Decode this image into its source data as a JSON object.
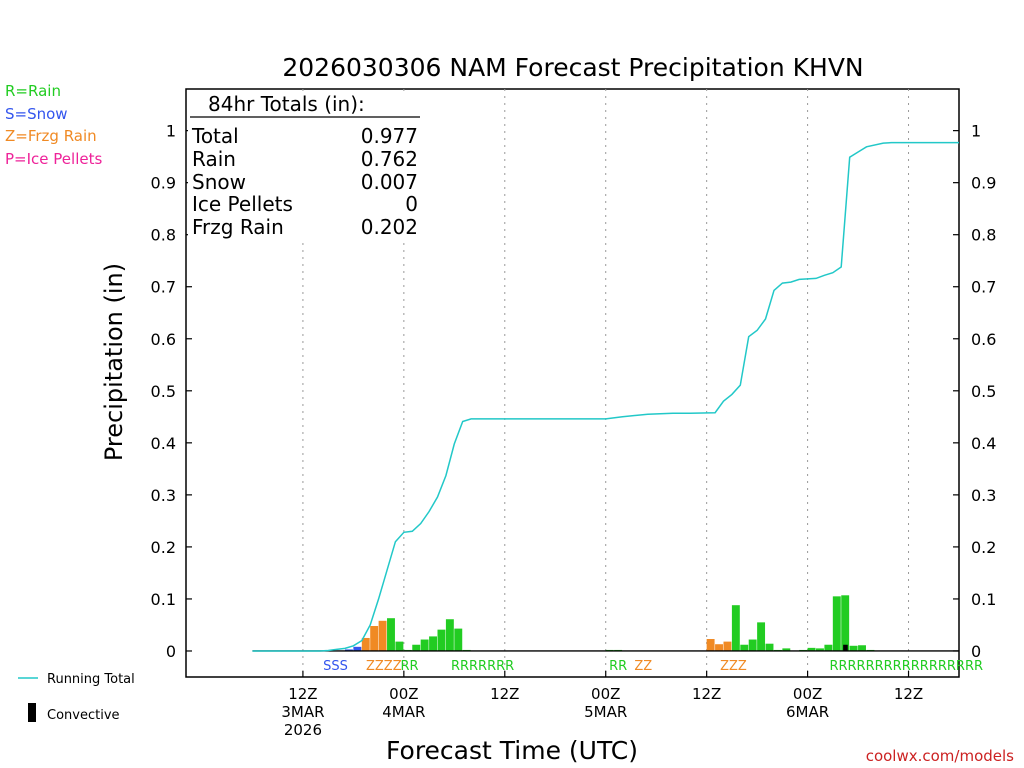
{
  "chart_data": {
    "type": "bar",
    "title": "2026030306 NAM Forecast Precipitation KHVN",
    "xlabel": "Forecast Time (UTC)",
    "ylabel": "Precipitation (in)",
    "ylim": [
      -0.05,
      1.08
    ],
    "xlim_hours": [
      -7.9,
      84
    ],
    "y_ticks": [
      0,
      0.1,
      0.2,
      0.3,
      0.4,
      0.5,
      0.6,
      0.7,
      0.8,
      0.9,
      1
    ],
    "y_tick_labels": [
      "0",
      "0.1",
      "0.2",
      "0.3",
      "0.4",
      "0.5",
      "0.6",
      "0.7",
      "0.8",
      "0.9",
      "1"
    ],
    "x_ticks": [
      {
        "hour": 6,
        "lines": [
          "12Z",
          "3MAR",
          "2026"
        ]
      },
      {
        "hour": 18,
        "lines": [
          "00Z",
          "4MAR"
        ]
      },
      {
        "hour": 30,
        "lines": [
          "12Z"
        ]
      },
      {
        "hour": 42,
        "lines": [
          "00Z",
          "5MAR"
        ]
      },
      {
        "hour": 54,
        "lines": [
          "12Z"
        ]
      },
      {
        "hour": 66,
        "lines": [
          "00Z",
          "6MAR"
        ]
      },
      {
        "hour": 78,
        "lines": [
          "12Z"
        ]
      }
    ],
    "legend": {
      "types": [
        {
          "label": "R=Rain",
          "color": "#22cc22"
        },
        {
          "label": "S=Snow",
          "color": "#3355ee"
        },
        {
          "label": "Z=Frzg Rain",
          "color": "#f08a24"
        },
        {
          "label": "P=Ice Pellets",
          "color": "#ee2299"
        }
      ],
      "running_total_label": "Running Total",
      "convective_label": "Convective"
    },
    "totals_box": {
      "header": "84hr Totals (in):",
      "rows": [
        {
          "label": "Total",
          "value": "0.977"
        },
        {
          "label": "Rain",
          "value": "0.762"
        },
        {
          "label": "Snow",
          "value": "0.007"
        },
        {
          "label": "Ice Pellets",
          "value": "0"
        },
        {
          "label": "Frzg Rain",
          "value": "0.202"
        }
      ]
    },
    "bars": [
      {
        "hour": 12,
        "value": 0.003,
        "type": "S"
      },
      {
        "hour": 13,
        "value": 0.008,
        "type": "S"
      },
      {
        "hour": 14,
        "value": 0.025,
        "type": "Z"
      },
      {
        "hour": 15,
        "value": 0.048,
        "type": "Z"
      },
      {
        "hour": 16,
        "value": 0.058,
        "type": "Z"
      },
      {
        "hour": 17,
        "value": 0.063,
        "type": "R"
      },
      {
        "hour": 18,
        "value": 0.018,
        "type": "R"
      },
      {
        "hour": 19,
        "value": 0.002,
        "type": "R"
      },
      {
        "hour": 20,
        "value": 0.012,
        "type": "R"
      },
      {
        "hour": 21,
        "value": 0.022,
        "type": "R"
      },
      {
        "hour": 22,
        "value": 0.028,
        "type": "R"
      },
      {
        "hour": 23,
        "value": 0.041,
        "type": "R"
      },
      {
        "hour": 24,
        "value": 0.061,
        "type": "R"
      },
      {
        "hour": 25,
        "value": 0.043,
        "type": "R"
      },
      {
        "hour": 26,
        "value": 0.002,
        "type": "R"
      },
      {
        "hour": 43,
        "value": 0.002,
        "type": "R"
      },
      {
        "hour": 44,
        "value": 0.002,
        "type": "R"
      },
      {
        "hour": 55,
        "value": 0.023,
        "type": "Z"
      },
      {
        "hour": 56,
        "value": 0.013,
        "type": "Z"
      },
      {
        "hour": 57,
        "value": 0.018,
        "type": "Z"
      },
      {
        "hour": 58,
        "value": 0.088,
        "type": "R"
      },
      {
        "hour": 59,
        "value": 0.012,
        "type": "R"
      },
      {
        "hour": 60,
        "value": 0.022,
        "type": "R"
      },
      {
        "hour": 61,
        "value": 0.055,
        "type": "R"
      },
      {
        "hour": 62,
        "value": 0.014,
        "type": "R"
      },
      {
        "hour": 63,
        "value": 0.002,
        "type": "R"
      },
      {
        "hour": 64,
        "value": 0.005,
        "type": "R"
      },
      {
        "hour": 66,
        "value": 0.002,
        "type": "R"
      },
      {
        "hour": 67,
        "value": 0.006,
        "type": "R"
      },
      {
        "hour": 68,
        "value": 0.005,
        "type": "R"
      },
      {
        "hour": 69,
        "value": 0.012,
        "type": "R"
      },
      {
        "hour": 70,
        "value": 0.105,
        "type": "R"
      },
      {
        "hour": 71,
        "value": 0.107,
        "type": "R"
      },
      {
        "hour": 72,
        "value": 0.01,
        "type": "R"
      },
      {
        "hour": 73,
        "value": 0.011,
        "type": "R"
      },
      {
        "hour": 74,
        "value": 0.002,
        "type": "R"
      }
    ],
    "convective_bars": [
      {
        "hour": 71,
        "value": 0.012
      }
    ],
    "type_labels": [
      {
        "hour": 8.4,
        "text": "SSS",
        "type": "S"
      },
      {
        "hour": 13.5,
        "text": "ZZZZ",
        "type": "Z"
      },
      {
        "hour": 17.6,
        "text": "RR",
        "type": "R"
      },
      {
        "hour": 23.6,
        "text": "RRRRRRR",
        "type": "R"
      },
      {
        "hour": 42.4,
        "text": "RR",
        "type": "R"
      },
      {
        "hour": 45.4,
        "text": "ZZ",
        "type": "Z"
      },
      {
        "hour": 55.6,
        "text": "ZZZ",
        "type": "Z"
      },
      {
        "hour": 68.6,
        "text": "RRRRRRRRRRRRRRRRR",
        "type": "R"
      }
    ],
    "running_total": [
      {
        "hour": 0,
        "value": 0
      },
      {
        "hour": 8,
        "value": 0
      },
      {
        "hour": 9,
        "value": 0.001
      },
      {
        "hour": 10,
        "value": 0.003
      },
      {
        "hour": 11,
        "value": 0.005
      },
      {
        "hour": 12,
        "value": 0.01
      },
      {
        "hour": 13,
        "value": 0.02
      },
      {
        "hour": 14,
        "value": 0.05
      },
      {
        "hour": 15,
        "value": 0.1
      },
      {
        "hour": 16,
        "value": 0.155
      },
      {
        "hour": 17,
        "value": 0.21
      },
      {
        "hour": 18,
        "value": 0.228
      },
      {
        "hour": 19,
        "value": 0.23
      },
      {
        "hour": 20,
        "value": 0.245
      },
      {
        "hour": 21,
        "value": 0.268
      },
      {
        "hour": 22,
        "value": 0.296
      },
      {
        "hour": 23,
        "value": 0.337
      },
      {
        "hour": 24,
        "value": 0.398
      },
      {
        "hour": 25,
        "value": 0.441
      },
      {
        "hour": 26,
        "value": 0.446
      },
      {
        "hour": 42,
        "value": 0.446
      },
      {
        "hour": 44,
        "value": 0.45
      },
      {
        "hour": 47,
        "value": 0.455
      },
      {
        "hour": 50,
        "value": 0.457
      },
      {
        "hour": 52,
        "value": 0.457
      },
      {
        "hour": 55,
        "value": 0.458
      },
      {
        "hour": 56,
        "value": 0.48
      },
      {
        "hour": 57,
        "value": 0.493
      },
      {
        "hour": 58,
        "value": 0.511
      },
      {
        "hour": 59,
        "value": 0.604
      },
      {
        "hour": 60,
        "value": 0.616
      },
      {
        "hour": 61,
        "value": 0.638
      },
      {
        "hour": 62,
        "value": 0.693
      },
      {
        "hour": 63,
        "value": 0.707
      },
      {
        "hour": 64,
        "value": 0.709
      },
      {
        "hour": 65,
        "value": 0.714
      },
      {
        "hour": 67,
        "value": 0.716
      },
      {
        "hour": 68,
        "value": 0.722
      },
      {
        "hour": 69,
        "value": 0.727
      },
      {
        "hour": 70,
        "value": 0.738
      },
      {
        "hour": 71,
        "value": 0.949
      },
      {
        "hour": 72,
        "value": 0.959
      },
      {
        "hour": 73,
        "value": 0.969
      },
      {
        "hour": 75,
        "value": 0.976
      },
      {
        "hour": 76,
        "value": 0.977
      },
      {
        "hour": 84,
        "value": 0.977
      }
    ]
  },
  "credit": "coolwx.com/models"
}
